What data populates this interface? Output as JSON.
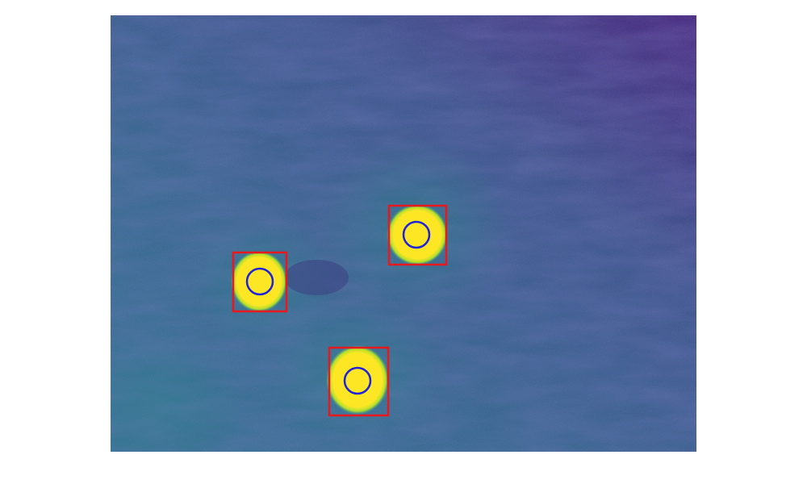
{
  "image": {
    "colormap": "viridis",
    "colors": {
      "background": "#ffffff",
      "field_dark": "#3f2a78",
      "field_mid": "#355f8d",
      "field_teal": "#2a7a8e",
      "blob_yellow": "#fde725",
      "blob_green": "#8fd744",
      "box_stroke": "#e8191c",
      "circle_stroke": "#1f22d8"
    },
    "detections": [
      {
        "id": "detection-1",
        "box_color": "red",
        "circle_color": "blue"
      },
      {
        "id": "detection-2",
        "box_color": "red",
        "circle_color": "blue"
      },
      {
        "id": "detection-3",
        "box_color": "red",
        "circle_color": "blue"
      }
    ]
  }
}
